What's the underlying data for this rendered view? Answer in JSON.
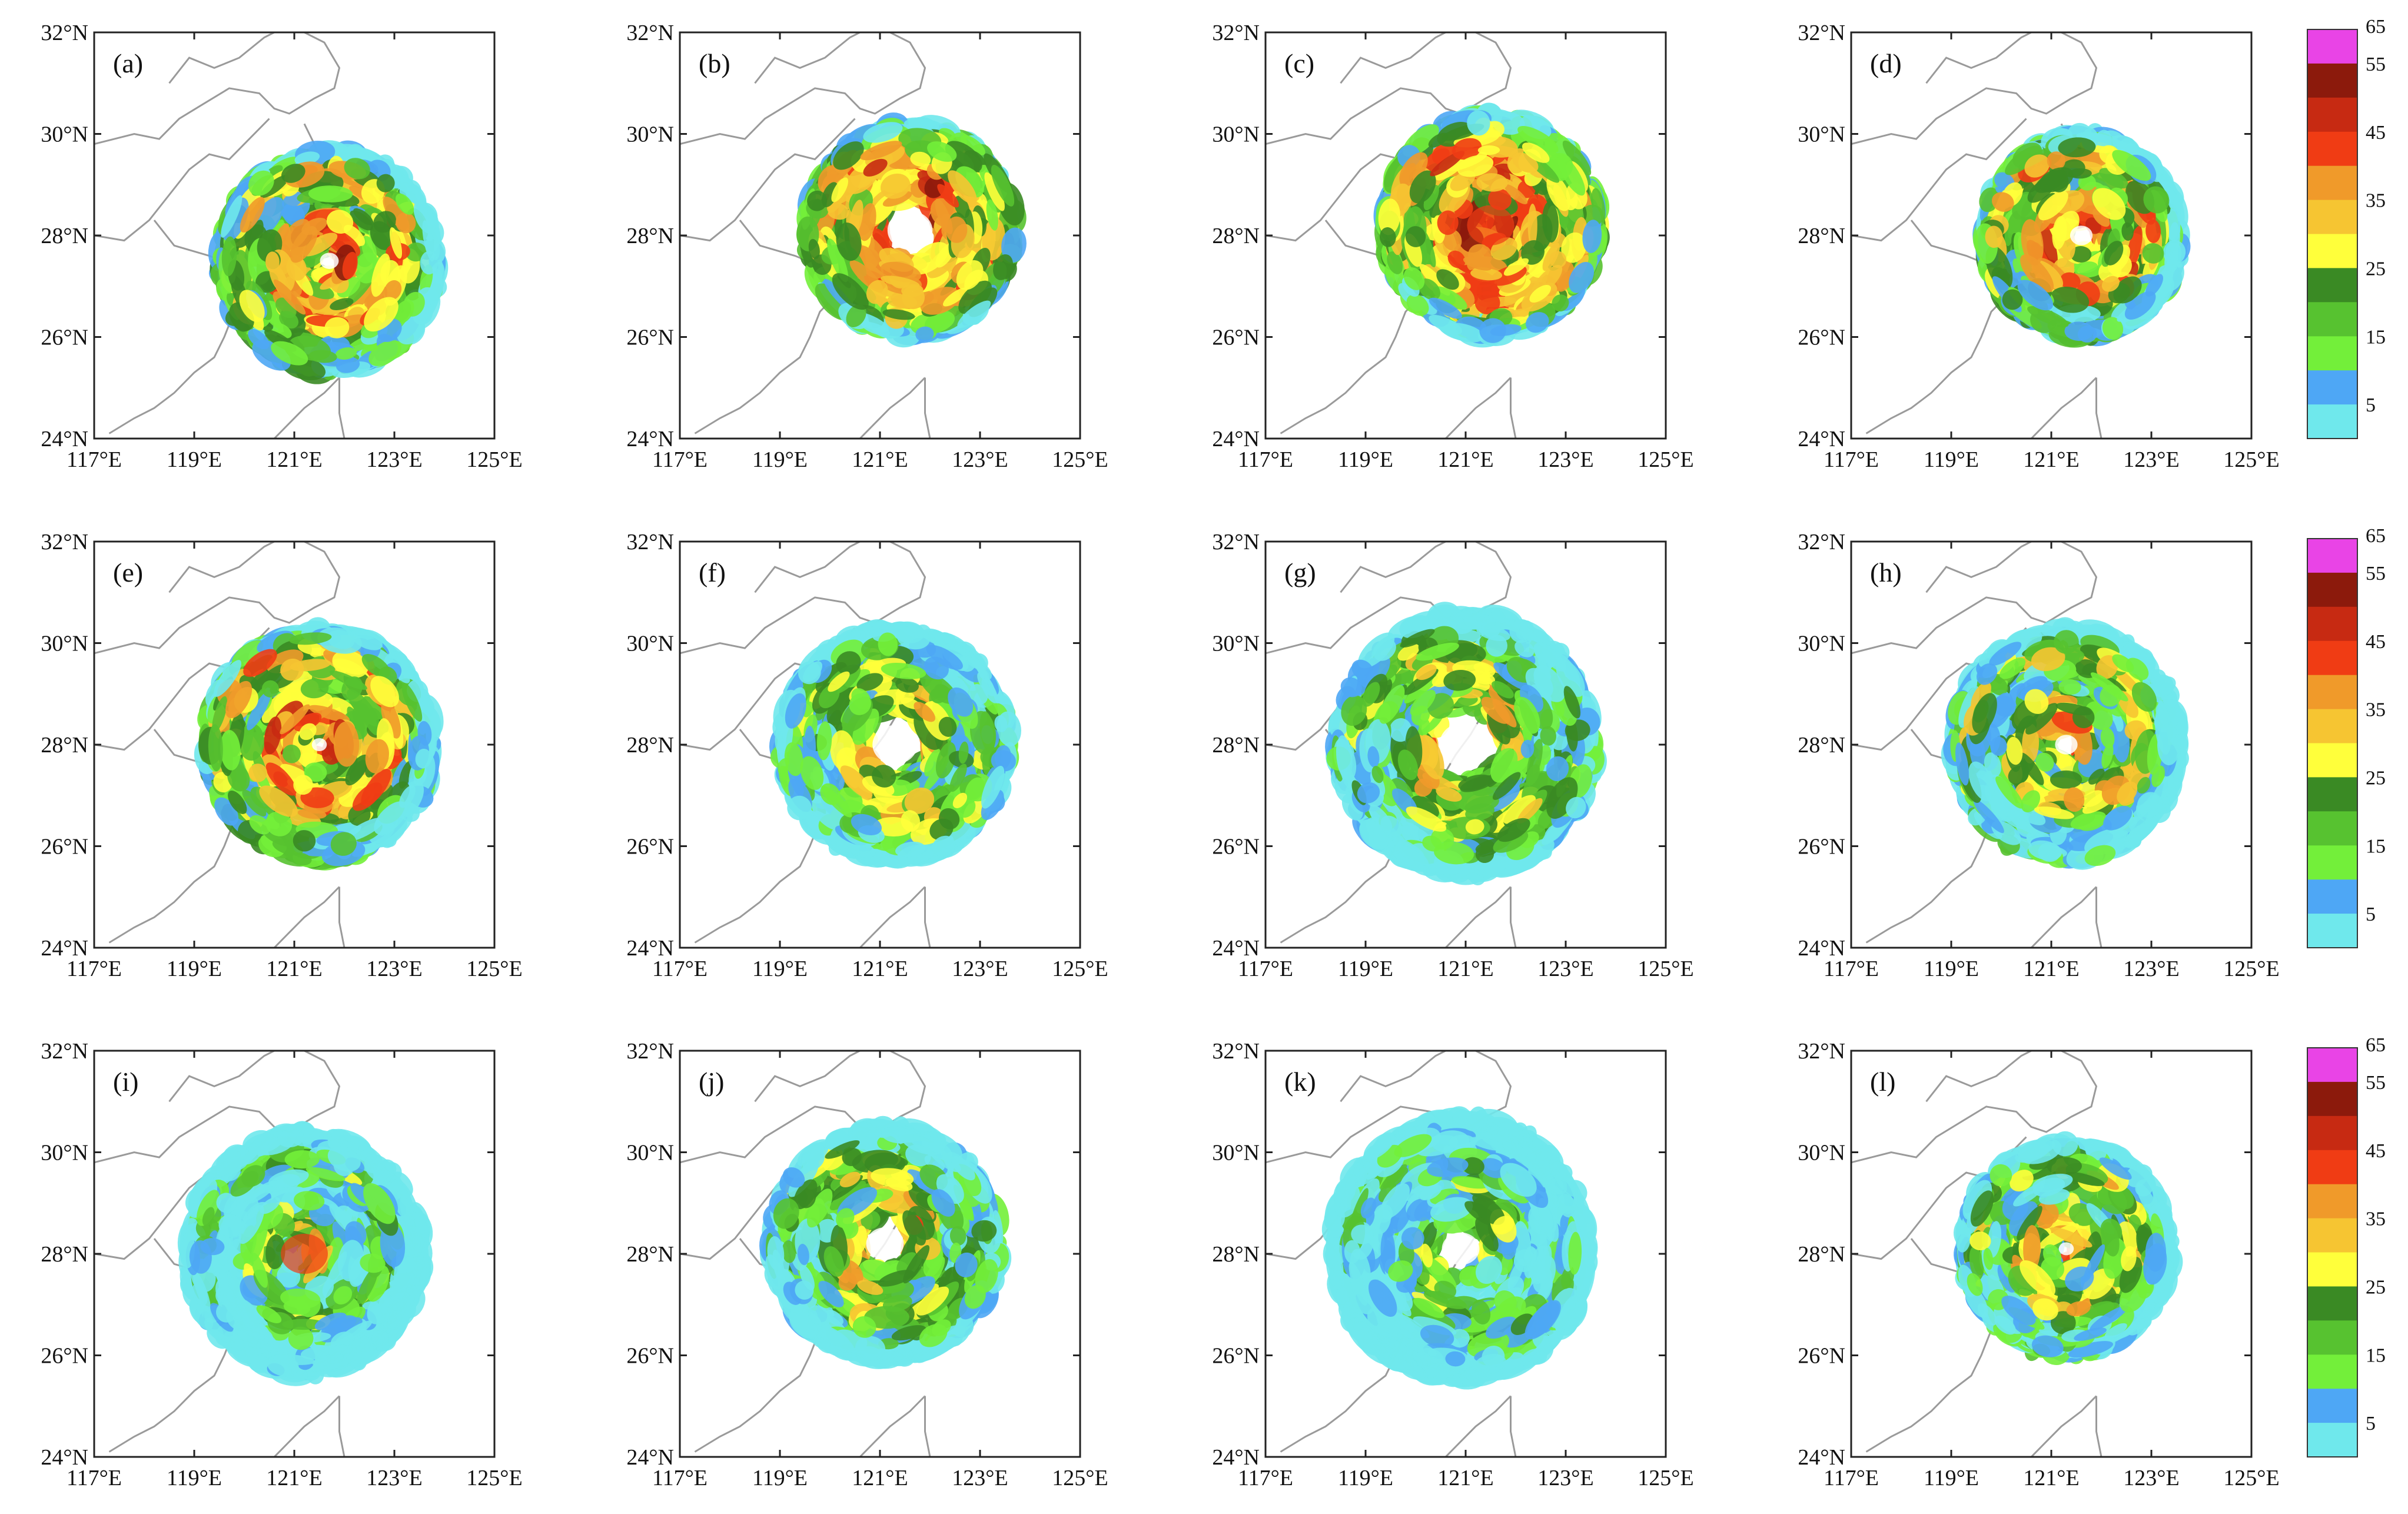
{
  "figure": {
    "lat_ticks": [
      "24°N",
      "26°N",
      "28°N",
      "30°N",
      "32°N"
    ],
    "lon_ticks": [
      "117°E",
      "119°E",
      "121°E",
      "123°E",
      "125°E"
    ],
    "extent": {
      "lon": [
        117,
        125
      ],
      "lat": [
        24,
        32
      ]
    }
  },
  "panels": [
    {
      "label": "(a)",
      "center": [
        121.7,
        27.5
      ],
      "radius": 2.2,
      "eye": 0.25,
      "spiral": true,
      "tone": "orange"
    },
    {
      "label": "(b)",
      "center": [
        121.6,
        28.1
      ],
      "radius": 2.1,
      "eye": 0.6,
      "spiral": false,
      "tone": "red"
    },
    {
      "label": "(c)",
      "center": [
        121.5,
        28.2
      ],
      "radius": 2.2,
      "eye": 0.0,
      "spiral": false,
      "tone": "red"
    },
    {
      "label": "(d)",
      "center": [
        121.6,
        28.0
      ],
      "radius": 2.0,
      "eye": 0.3,
      "spiral": true,
      "tone": "orange"
    },
    {
      "label": "(e)",
      "center": [
        121.5,
        28.0
      ],
      "radius": 2.3,
      "eye": 0.2,
      "spiral": true,
      "tone": "orange"
    },
    {
      "label": "(f)",
      "center": [
        121.3,
        28.0
      ],
      "radius": 2.3,
      "eye": 0.6,
      "spiral": false,
      "tone": "mixed"
    },
    {
      "label": "(g)",
      "center": [
        121.0,
        28.0
      ],
      "radius": 2.6,
      "eye": 0.7,
      "spiral": false,
      "tone": "mixed"
    },
    {
      "label": "(h)",
      "center": [
        121.3,
        28.0
      ],
      "radius": 2.3,
      "eye": 0.3,
      "spiral": true,
      "tone": "mixed"
    },
    {
      "label": "(i)",
      "center": [
        121.2,
        28.0
      ],
      "radius": 2.4,
      "eye": 0.0,
      "spiral": true,
      "tone": "green"
    },
    {
      "label": "(j)",
      "center": [
        121.1,
        28.2
      ],
      "radius": 2.3,
      "eye": 0.5,
      "spiral": false,
      "tone": "mixed"
    },
    {
      "label": "(k)",
      "center": [
        120.9,
        28.1
      ],
      "radius": 2.6,
      "eye": 0.5,
      "spiral": false,
      "tone": "green"
    },
    {
      "label": "(l)",
      "center": [
        121.3,
        28.1
      ],
      "radius": 2.1,
      "eye": 0.2,
      "spiral": true,
      "tone": "mixed"
    }
  ],
  "colorbar": {
    "tick_labels": [
      "5",
      "15",
      "25",
      "35",
      "45",
      "55",
      "65"
    ],
    "colors": [
      "#6fe8ec",
      "#4ea7f5",
      "#73ef3a",
      "#57c230",
      "#3a8a24",
      "#ffff3b",
      "#f6c532",
      "#f09a2a",
      "#f03c14",
      "#c72a12",
      "#8c1a0c",
      "#e944e6"
    ]
  }
}
